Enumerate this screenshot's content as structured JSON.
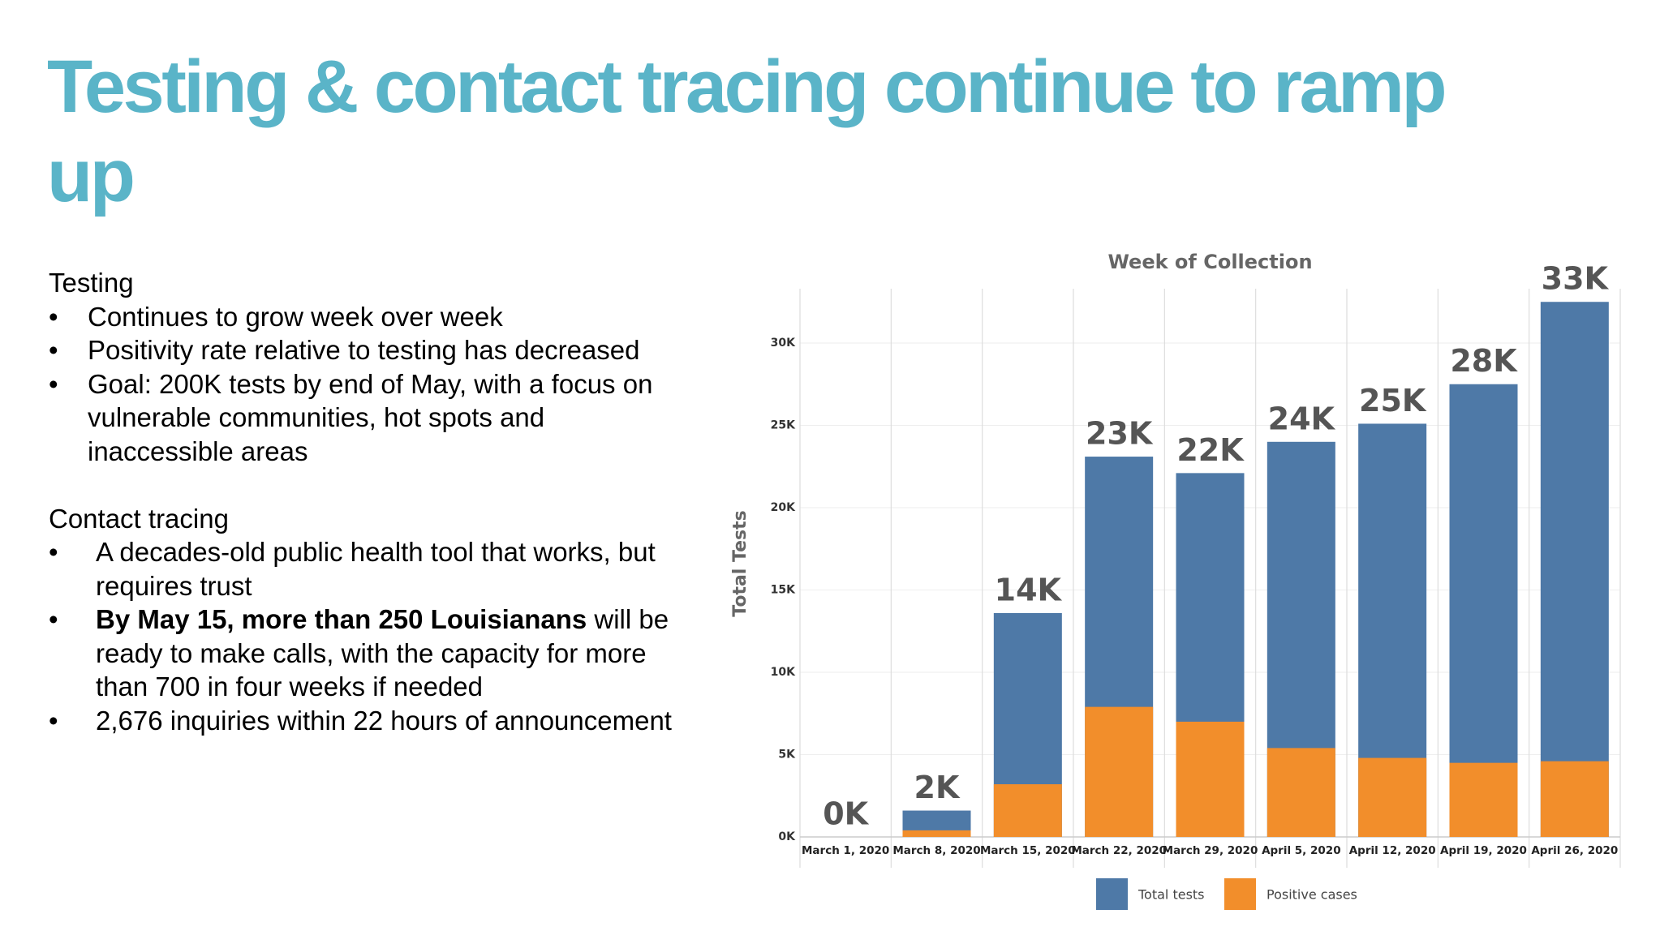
{
  "title": "Testing & contact tracing continue to ramp up",
  "sections": [
    {
      "heading": "Testing",
      "bullets": [
        {
          "text": "Continues to grow week over week"
        },
        {
          "text": "Positivity rate relative to testing has decreased"
        },
        {
          "text": "Goal: 200K tests by end of May, with a focus on vulnerable communities, hot spots and inaccessible areas"
        }
      ]
    },
    {
      "heading": "Contact tracing",
      "bullets": [
        {
          "text": "A decades-old public health tool that works, but requires trust"
        },
        {
          "bold": "By May 15, more than 250 Louisianans",
          "text": " will be ready to make calls, with the capacity for more than 700 in four weeks if needed"
        },
        {
          "text": "2,676 inquiries within 22 hours of announcement"
        }
      ]
    }
  ],
  "chart_data": {
    "type": "bar",
    "title": "Week of Collection",
    "ylabel": "Total Tests",
    "categories": [
      "March 1, 2020",
      "March 8, 2020",
      "March 15, 2020",
      "March 22, 2020",
      "March 29, 2020",
      "April 5, 2020",
      "April 12, 2020",
      "April 19, 2020",
      "April 26, 2020"
    ],
    "series": [
      {
        "name": "Total tests",
        "color": "#4e79a7",
        "values": [
          0,
          1600,
          13600,
          23100,
          22100,
          24000,
          25100,
          27500,
          32500
        ],
        "value_labels": [
          "0K",
          "2K",
          "14K",
          "23K",
          "22K",
          "24K",
          "25K",
          "28K",
          "33K"
        ]
      },
      {
        "name": "Positive cases",
        "color": "#f28e2b",
        "values": [
          0,
          400,
          3200,
          7900,
          7000,
          5400,
          4800,
          4500,
          4600
        ]
      }
    ],
    "ylim": [
      0,
      33300
    ],
    "yticks": [
      {
        "value": 0,
        "label": "0K"
      },
      {
        "value": 5000,
        "label": "5K"
      },
      {
        "value": 10000,
        "label": "10K"
      },
      {
        "value": 15000,
        "label": "15K"
      },
      {
        "value": 20000,
        "label": "20K"
      },
      {
        "value": 25000,
        "label": "25K"
      },
      {
        "value": 30000,
        "label": "30K"
      }
    ],
    "grid": true,
    "legend": "bottom"
  }
}
